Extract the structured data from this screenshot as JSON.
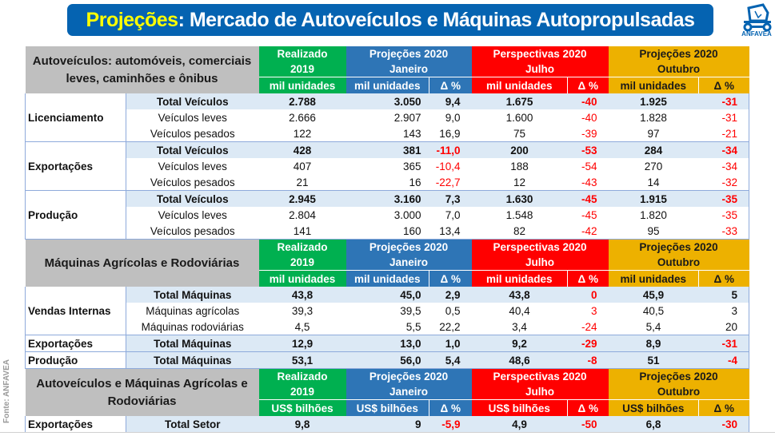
{
  "title": {
    "highlight": "Projeções",
    "rest": ": Mercado de Autoveículos e Máquinas Autopropulsadas"
  },
  "logo": {
    "text": "ANFAVEA",
    "icon": "tractor-logo-icon"
  },
  "source": "Fonte: ANFAVEA",
  "colors": {
    "green": "#00b050",
    "blue": "#2e75b6",
    "red": "#ff0000",
    "yellow": "#edb100",
    "title_bg": "#0563b1"
  },
  "column_groups": [
    {
      "line1": "Realizado",
      "line2": "2019"
    },
    {
      "line1": "Projeções 2020",
      "line2": "Janeiro"
    },
    {
      "line1": "Perspectivas 2020",
      "line2": "Julho"
    },
    {
      "line1": "Projeções 2020",
      "line2": "Outubro"
    }
  ],
  "delta_label": "Δ %",
  "sections": [
    {
      "label": "Autoveículos: automóveis, comerciais leves, caminhões e ônibus",
      "unit": "mil unidades",
      "groups": [
        {
          "name": "Licenciamento",
          "rows": [
            {
              "item": "Total Veículos",
              "total": true,
              "values": [
                "2.788",
                "3.050",
                "9,4",
                "1.675",
                "-40",
                "1.925",
                "-31"
              ]
            },
            {
              "item": "Veículos leves",
              "total": false,
              "values": [
                "2.666",
                "2.907",
                "9,0",
                "1.600",
                "-40",
                "1.828",
                "-31"
              ]
            },
            {
              "item": "Veículos pesados",
              "total": false,
              "values": [
                "122",
                "143",
                "16,9",
                "75",
                "-39",
                "97",
                "-21"
              ]
            }
          ]
        },
        {
          "name": "Exportações",
          "rows": [
            {
              "item": "Total Veículos",
              "total": true,
              "values": [
                "428",
                "381",
                "-11,0",
                "200",
                "-53",
                "284",
                "-34"
              ]
            },
            {
              "item": "Veículos leves",
              "total": false,
              "values": [
                "407",
                "365",
                "-10,4",
                "188",
                "-54",
                "270",
                "-34"
              ]
            },
            {
              "item": "Veículos pesados",
              "total": false,
              "values": [
                "21",
                "16",
                "-22,7",
                "12",
                "-43",
                "14",
                "-32"
              ]
            }
          ]
        },
        {
          "name": "Produção",
          "rows": [
            {
              "item": "Total Veículos",
              "total": true,
              "values": [
                "2.945",
                "3.160",
                "7,3",
                "1.630",
                "-45",
                "1.915",
                "-35"
              ]
            },
            {
              "item": "Veículos leves",
              "total": false,
              "values": [
                "2.804",
                "3.000",
                "7,0",
                "1.548",
                "-45",
                "1.820",
                "-35"
              ]
            },
            {
              "item": "Veículos pesados",
              "total": false,
              "values": [
                "141",
                "160",
                "13,4",
                "82",
                "-42",
                "95",
                "-33"
              ]
            }
          ]
        }
      ]
    },
    {
      "label": "Máquinas Agrícolas e Rodoviárias",
      "unit": "mil unidades",
      "groups": [
        {
          "name": "Vendas Internas",
          "rows": [
            {
              "item": "Total Máquinas",
              "total": true,
              "values": [
                "43,8",
                "45,0",
                "2,9",
                "43,8",
                "0",
                "45,9",
                "5"
              ]
            },
            {
              "item": "Máquinas agrícolas",
              "total": false,
              "values": [
                "39,3",
                "39,5",
                "0,5",
                "40,4",
                "3",
                "40,5",
                "3"
              ]
            },
            {
              "item": "Máquinas rodoviárias",
              "total": false,
              "values": [
                "4,5",
                "5,5",
                "22,2",
                "3,4",
                "-24",
                "5,4",
                "20"
              ]
            }
          ]
        },
        {
          "name": "Exportações",
          "rows": [
            {
              "item": "Total Máquinas",
              "total": true,
              "values": [
                "12,9",
                "13,0",
                "1,0",
                "9,2",
                "-29",
                "8,9",
                "-31"
              ]
            }
          ]
        },
        {
          "name": "Produção",
          "rows": [
            {
              "item": "Total Máquinas",
              "total": true,
              "values": [
                "53,1",
                "56,0",
                "5,4",
                "48,6",
                "-8",
                "51",
                "-4"
              ]
            }
          ]
        }
      ]
    },
    {
      "label": "Autoveículos e Máquinas Agrícolas e Rodoviárias",
      "unit": "US$ bilhões",
      "groups": [
        {
          "name": "Exportações",
          "rows": [
            {
              "item": "Total Setor",
              "total": true,
              "values": [
                "9,8",
                "9",
                "-5,9",
                "4,9",
                "-50",
                "6,8",
                "-30"
              ]
            }
          ]
        }
      ]
    }
  ]
}
